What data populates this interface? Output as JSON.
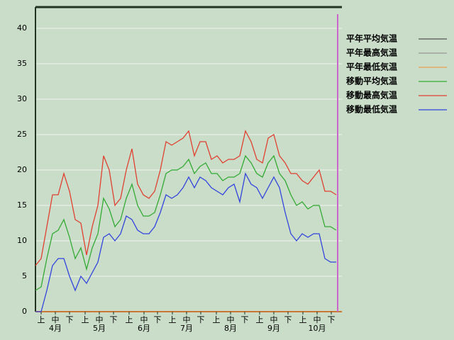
{
  "chart_data": {
    "type": "line",
    "x": [
      0,
      4,
      8,
      12,
      16,
      20,
      24,
      28,
      32,
      36,
      40,
      44,
      48,
      52,
      56,
      60,
      64,
      68,
      72,
      76,
      80,
      84,
      88,
      92,
      96,
      100,
      104,
      108,
      112,
      116,
      120,
      124,
      128,
      132,
      136,
      140,
      144,
      148,
      152,
      156,
      160,
      164,
      168,
      172,
      176,
      180,
      184,
      188,
      192,
      196,
      200,
      204,
      208,
      212
    ],
    "xlim": [
      0,
      216
    ],
    "xticks": [
      {
        "value": 4,
        "label": "上"
      },
      {
        "value": 14,
        "label": "中"
      },
      {
        "value": 24,
        "label": "下"
      },
      {
        "value": 35,
        "label": "上"
      },
      {
        "value": 45,
        "label": "中"
      },
      {
        "value": 55,
        "label": "下"
      },
      {
        "value": 66,
        "label": "上"
      },
      {
        "value": 76.5,
        "label": "中"
      },
      {
        "value": 86,
        "label": "下"
      },
      {
        "value": 96.5,
        "label": "上"
      },
      {
        "value": 106.5,
        "label": "中"
      },
      {
        "value": 116.5,
        "label": "下"
      },
      {
        "value": 127.5,
        "label": "上"
      },
      {
        "value": 137.5,
        "label": "中"
      },
      {
        "value": 147.5,
        "label": "下"
      },
      {
        "value": 158,
        "label": "上"
      },
      {
        "value": 168,
        "label": "中"
      },
      {
        "value": 178,
        "label": "下"
      },
      {
        "value": 188.5,
        "label": "上"
      },
      {
        "value": 198.5,
        "label": "中"
      },
      {
        "value": 208.5,
        "label": "下"
      }
    ],
    "month_labels": [
      {
        "value": 14,
        "label": "4月"
      },
      {
        "value": 45,
        "label": "5月"
      },
      {
        "value": 76.5,
        "label": "6月"
      },
      {
        "value": 106.5,
        "label": "7月"
      },
      {
        "value": 137.5,
        "label": "8月"
      },
      {
        "value": 168,
        "label": "9月"
      },
      {
        "value": 198.5,
        "label": "10月"
      }
    ],
    "ylim": [
      0,
      43
    ],
    "yticks": [
      0,
      5,
      10,
      15,
      20,
      25,
      30,
      35,
      40
    ],
    "grid": true,
    "current_x": 213,
    "current_color": "#cc66cc",
    "series": [
      {
        "name": "平年平均気温",
        "color": "#555555"
      },
      {
        "name": "平年最高気温",
        "color": "#999999"
      },
      {
        "name": "平年最低気温",
        "color": "#e8a050"
      },
      {
        "name": "移動平均気温",
        "color": "#33aa33",
        "values": [
          3,
          3.5,
          7.5,
          11,
          11.5,
          13,
          10.5,
          7.5,
          9,
          6,
          9,
          11,
          16,
          14.5,
          12,
          13,
          16,
          18,
          15,
          13.5,
          13.5,
          14,
          16.5,
          19.5,
          20,
          20,
          20.5,
          21.5,
          19.5,
          20.5,
          21,
          19.5,
          19.5,
          18.5,
          19,
          19,
          19.5,
          22,
          21,
          19.5,
          19,
          21,
          22,
          19.5,
          18.5,
          16.5,
          15,
          15.5,
          14.5,
          15,
          15,
          12,
          12,
          11.5
        ]
      },
      {
        "name": "移動最高気温",
        "color": "#e04030",
        "values": [
          6.5,
          7.5,
          12,
          16.5,
          16.5,
          19.5,
          17,
          13,
          12.5,
          8,
          12,
          15,
          22,
          20,
          15,
          16,
          20,
          23,
          18,
          16.5,
          16,
          17,
          20,
          24,
          23.5,
          24,
          24.5,
          25.5,
          22,
          24,
          24,
          21.5,
          22,
          21,
          21.5,
          21.5,
          22,
          25.5,
          24,
          21.5,
          21,
          24.5,
          25,
          22,
          21,
          19.5,
          19.5,
          18.5,
          18,
          19,
          20,
          17,
          17,
          16.5
        ]
      },
      {
        "name": "移動最低気温",
        "color": "#3344dd",
        "values": [
          0,
          0,
          3,
          6.5,
          7.5,
          7.5,
          5,
          3,
          5,
          4,
          5.5,
          7,
          10.5,
          11,
          10,
          11,
          13.5,
          13,
          11.5,
          11,
          11,
          12,
          14,
          16.5,
          16,
          16.5,
          17.5,
          19,
          17.5,
          19,
          18.5,
          17.5,
          17,
          16.5,
          17.5,
          18,
          15.5,
          19.5,
          18,
          17.5,
          16,
          17.5,
          19,
          17.5,
          14,
          11,
          10,
          11,
          10.5,
          11,
          11,
          7.5,
          7,
          7
        ]
      }
    ]
  }
}
